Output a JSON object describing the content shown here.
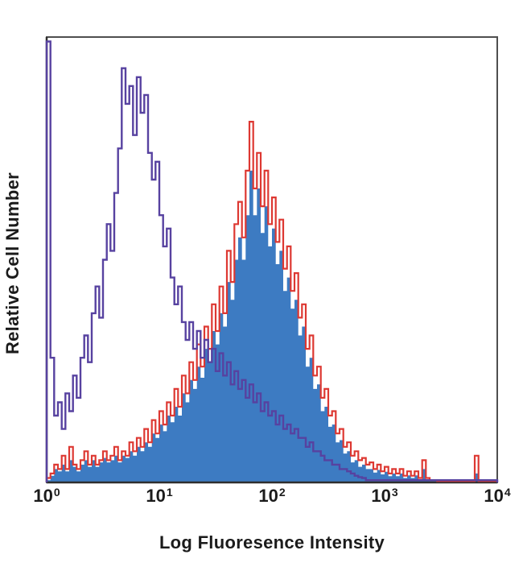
{
  "colors": {
    "frame": "#4f4f4f",
    "axis": "#2e2e2e",
    "text": "#1b1b1b",
    "purple": "#5742a0",
    "red": "#dd3832",
    "blue": "#3d7bc2",
    "background": "#ffffff"
  },
  "axes": {
    "x_ticks": [
      {
        "base": "10",
        "exp": "0",
        "log": 0
      },
      {
        "base": "10",
        "exp": "1",
        "log": 1
      },
      {
        "base": "10",
        "exp": "2",
        "log": 2
      },
      {
        "base": "10",
        "exp": "3",
        "log": 3
      },
      {
        "base": "10",
        "exp": "4",
        "log": 4
      }
    ]
  },
  "chart_data": {
    "type": "area",
    "subtype": "flow-cytometry-overlay-histogram",
    "title": "",
    "xlabel": "Log Fluoresence Intensity",
    "ylabel": "Relative Cell Number",
    "x_scale": "log10",
    "x_log_range": [
      0,
      4
    ],
    "ylim": [
      0,
      100
    ],
    "y_units": "percent-of-plot-height (relative cell number, unlabeled axis)",
    "grid": false,
    "legend": false,
    "bin_log_start": 0,
    "bin_log_step": 0.033333,
    "series": [
      {
        "name": "blue-filled-histogram",
        "style": "area",
        "color": "#3d7bc2",
        "values": [
          0.5,
          1.5,
          3,
          2.5,
          4,
          2.5,
          5,
          3.5,
          2.5,
          4,
          5,
          3.5,
          5,
          3.5,
          4.5,
          5.5,
          4.5,
          5,
          6,
          4.5,
          6,
          5.5,
          7,
          6,
          8,
          7,
          9,
          8,
          11,
          10,
          13,
          11.5,
          15,
          13.5,
          17,
          15,
          20,
          18,
          23,
          21,
          26,
          23.5,
          30,
          27,
          34,
          31,
          38,
          35,
          45,
          41,
          50,
          55,
          50,
          60,
          70,
          60,
          66,
          56,
          62,
          53,
          57,
          49,
          52,
          43,
          46,
          39,
          41,
          33,
          35,
          26,
          28,
          21,
          22,
          16,
          17,
          12.5,
          13,
          9,
          9.5,
          6.5,
          7,
          4.5,
          5,
          3.5,
          4,
          3,
          3,
          2.2,
          2.8,
          1.8,
          2.4,
          1.4,
          2,
          1.4,
          2,
          1,
          1.6,
          1,
          1.6,
          0.7,
          3,
          0.7,
          0.3,
          0.3,
          0.2,
          0.2,
          0.2,
          0.2,
          0.2,
          0.2,
          0.2,
          0.2,
          0.2,
          0.2,
          2,
          0.2,
          0.2,
          0.2,
          0.2,
          0.2,
          0.2
        ]
      },
      {
        "name": "red-outline-histogram",
        "style": "line",
        "color": "#dd3832",
        "stroke_width": 2.2,
        "values": [
          1,
          2,
          4,
          3,
          6,
          3,
          8,
          4,
          3,
          5,
          7,
          4,
          6,
          4,
          5,
          7,
          5,
          6,
          8,
          5,
          7,
          6,
          9,
          7,
          10,
          8,
          12,
          9,
          14,
          11,
          16,
          13,
          18,
          15,
          21,
          17,
          24,
          20,
          27,
          23,
          31,
          26,
          35,
          30,
          40,
          34,
          44,
          38,
          52,
          45,
          58,
          63,
          55,
          70,
          81,
          66,
          74,
          62,
          70,
          58,
          64,
          54,
          59,
          48,
          53,
          43,
          47,
          37,
          40,
          30,
          33,
          24,
          26,
          19,
          21,
          15,
          16,
          11,
          12,
          8,
          9,
          6,
          7,
          5,
          5.5,
          4,
          4.5,
          3,
          4,
          2.5,
          3.5,
          2,
          3,
          2,
          3,
          1.5,
          2.5,
          1.5,
          2.5,
          1,
          5,
          1,
          0.5,
          0.5,
          0.3,
          0.3,
          0.3,
          0.3,
          0.3,
          0.3,
          0.3,
          0.3,
          0.3,
          0.3,
          6,
          0.3,
          0.3,
          0.3,
          0.3,
          0.3,
          0.3
        ]
      },
      {
        "name": "purple-outline-histogram",
        "style": "line",
        "color": "#5742a0",
        "stroke_width": 2.4,
        "values": [
          99,
          28,
          15,
          18,
          12,
          20,
          16,
          24,
          19,
          28,
          33,
          27,
          38,
          44,
          37,
          50,
          58,
          52,
          65,
          75,
          93,
          85,
          89,
          78,
          91,
          83,
          87,
          74,
          68,
          72,
          60,
          53,
          57,
          46,
          40,
          44,
          36,
          32,
          36,
          30,
          34,
          28,
          32,
          27,
          30,
          25,
          29,
          24,
          27,
          22,
          25,
          21,
          23,
          19,
          22,
          18,
          20,
          16,
          18,
          15,
          16,
          13,
          15,
          12,
          13,
          11,
          12,
          10,
          10,
          8,
          9,
          7,
          7,
          6,
          5,
          5,
          4,
          4,
          3,
          3,
          2.5,
          2,
          1.5,
          1.2,
          1,
          0.5,
          0.5,
          0.5,
          0.5,
          0.5,
          0.5,
          0.5,
          0.5,
          0.5,
          0.5,
          0.5,
          0.5,
          0.5,
          0.5,
          0.5,
          0.5,
          0.5,
          0.5,
          0.5,
          0.5,
          0.5,
          0.5,
          0.5,
          0.5,
          0.5,
          0.5,
          0.5,
          0.5,
          0.5,
          0.5,
          0.5,
          0.5,
          0.5,
          0.5,
          0.5,
          0.5
        ]
      }
    ]
  }
}
